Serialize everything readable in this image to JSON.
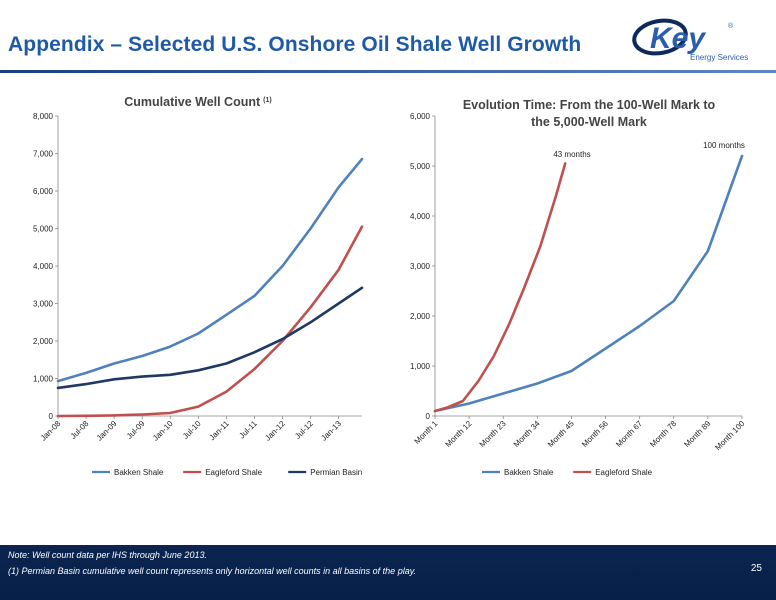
{
  "slide": {
    "title": "Appendix  – Selected U.S. Onshore Oil Shale Well Growth",
    "logo_text": "Key",
    "logo_registered": "®",
    "logo_subtitle": "Energy Services",
    "notes": [
      "Note: Well count data per IHS through June 2013.",
      "(1) Permian Basin cumulative well count represents only horizontal well counts in all basins of the play."
    ],
    "page_number": "25",
    "colors": {
      "title": "#1f5aa6",
      "footer": "#0b2550",
      "logo_blue": "#2a5db0",
      "logo_navy": "#0e2a5c"
    }
  },
  "chart_data": [
    {
      "type": "line",
      "title": "Cumulative Well Count",
      "title_superscript": "(1)",
      "x_tick_labels": [
        "Jan-08",
        "Jul-08",
        "Jan-09",
        "Jul-09",
        "Jan-10",
        "Jul-10",
        "Jan-11",
        "Jul-11",
        "Jan-12",
        "Jul-12",
        "Jan-13"
      ],
      "x_range": [
        "Jan-08",
        "Jun-13"
      ],
      "ylim": [
        0,
        8000
      ],
      "y_tick_labels": [
        "0",
        "1,000",
        "2,000",
        "3,000",
        "4,000",
        "5,000",
        "6,000",
        "7,000",
        "8,000"
      ],
      "grid": false,
      "legend_position": "bottom",
      "series": [
        {
          "name": "Bakken Shale",
          "color": "#4f81bd",
          "x": [
            "Jan-08",
            "Jul-08",
            "Jan-09",
            "Jul-09",
            "Jan-10",
            "Jul-10",
            "Jan-11",
            "Jul-11",
            "Jan-12",
            "Jul-12",
            "Jan-13",
            "Jun-13"
          ],
          "values": [
            930,
            1150,
            1400,
            1600,
            1850,
            2200,
            2700,
            3200,
            4000,
            5000,
            6100,
            6850
          ]
        },
        {
          "name": "Eagleford Shale",
          "color": "#c0504d",
          "x": [
            "Jan-08",
            "Jul-08",
            "Jan-09",
            "Jul-09",
            "Jan-10",
            "Jul-10",
            "Jan-11",
            "Jul-11",
            "Jan-12",
            "Jul-12",
            "Jan-13",
            "Jun-13"
          ],
          "values": [
            0,
            5,
            15,
            40,
            80,
            250,
            650,
            1250,
            2000,
            2900,
            3900,
            5050
          ]
        },
        {
          "name": "Permian Basin",
          "color": "#1f3864",
          "x": [
            "Jan-08",
            "Jul-08",
            "Jan-09",
            "Jul-09",
            "Jan-10",
            "Jul-10",
            "Jan-11",
            "Jul-11",
            "Jan-12",
            "Jul-12",
            "Jan-13",
            "Jun-13"
          ],
          "values": [
            750,
            850,
            980,
            1050,
            1100,
            1220,
            1400,
            1700,
            2050,
            2500,
            3000,
            3420
          ]
        }
      ]
    },
    {
      "type": "line",
      "title": "Evolution Time: From the 100-Well Mark to the 5,000-Well Mark",
      "title_lines": [
        "Evolution Time: From the 100-Well Mark to",
        "the 5,000-Well Mark"
      ],
      "x_tick_labels": [
        "Month 1",
        "Month 12",
        "Month 23",
        "Month 34",
        "Month 45",
        "Month 56",
        "Month 67",
        "Month 78",
        "Month 89",
        "Month 100"
      ],
      "x_range": [
        1,
        100
      ],
      "ylim": [
        0,
        6000
      ],
      "y_tick_labels": [
        "0",
        "1,000",
        "2,000",
        "3,000",
        "4,000",
        "5,000",
        "6,000"
      ],
      "grid": false,
      "legend_position": "bottom",
      "annotations": [
        "43 months",
        "100 months"
      ],
      "series": [
        {
          "name": "Bakken Shale",
          "color": "#4f81bd",
          "x": [
            1,
            12,
            23,
            34,
            45,
            56,
            67,
            78,
            89,
            100
          ],
          "values": [
            100,
            250,
            450,
            650,
            900,
            1350,
            1800,
            2300,
            3300,
            5200
          ]
        },
        {
          "name": "Eagleford Shale",
          "color": "#c0504d",
          "x": [
            1,
            5,
            10,
            15,
            20,
            25,
            30,
            35,
            40,
            43
          ],
          "values": [
            100,
            170,
            300,
            700,
            1200,
            1850,
            2600,
            3400,
            4400,
            5050
          ]
        }
      ]
    }
  ]
}
